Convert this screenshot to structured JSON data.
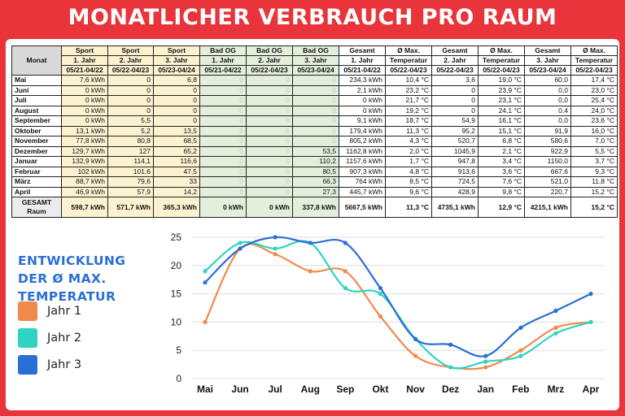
{
  "title": "MONATLICHER VERBRAUCH PRO RAUM",
  "table": {
    "header_row1": [
      "Monat",
      "Sport",
      "Sport",
      "Sport",
      "Bad OG",
      "Bad OG",
      "Bad OG",
      "Gesamt",
      "Ø Max.",
      "Gesamt",
      "Ø Max.",
      "Gesamt",
      "Ø Max."
    ],
    "header_row2": [
      "",
      "1. Jahr",
      "2. Jahr",
      "3. Jahr",
      "1. Jahr",
      "2. Jahr",
      "3. Jahr",
      "1. Jahr",
      "Temperatur",
      "2. Jahr",
      "Temperatur",
      "3. Jahr",
      "Temperatur"
    ],
    "header_row3": [
      "",
      "05/21-04/22",
      "05/22-04/23",
      "05/23-04/24",
      "05/21-04/22",
      "05/22-04/23",
      "05/23-04/24",
      "05/21-04/22",
      "05/22-04/23",
      "05/22-04/23",
      "05/22-04/23",
      "05/23-04/24",
      "05/22-04/23"
    ],
    "rows": [
      [
        "Mai",
        "7,6 kWh",
        "0",
        "6,8",
        "0",
        "0",
        "0",
        "234,3 kWh",
        "10,4 °C",
        "3,6",
        "19,0 °C",
        "60,0",
        "17,4 °C"
      ],
      [
        "Juni",
        "0 kWh",
        "0",
        "0",
        "0",
        "0",
        "0",
        "2,1 kWh",
        "23,2 °C",
        "0",
        "23,9 °C",
        "0,0",
        "23,0 °C"
      ],
      [
        "Juli",
        "0 kWh",
        "0",
        "0",
        "0",
        "0",
        "0",
        "0 kWh",
        "21,7 °C",
        "0",
        "23,1 °C",
        "0,0",
        "25,4 °C"
      ],
      [
        "August",
        "0 kWh",
        "0",
        "0",
        "0",
        "0",
        "0",
        "0 kWh",
        "19,2 °C",
        "0",
        "24,1 °C",
        "0,4",
        "24,0 °C"
      ],
      [
        "September",
        "0 kWh",
        "5,5",
        "0",
        "0",
        "0",
        "0",
        "9,1 kWh",
        "18,7 °C",
        "54,9",
        "16,1 °C",
        "0,0",
        "23,6 °C"
      ],
      [
        "Oktober",
        "13,1 kWh",
        "5,2",
        "13,5",
        "0",
        "0",
        "0",
        "179,4 kWh",
        "11,3 °C",
        "95,2",
        "15,1 °C",
        "91,9",
        "16,0 °C"
      ],
      [
        "November",
        "77,8 kWh",
        "80,8",
        "68,5",
        "0",
        "0",
        "0",
        "805,2 kWh",
        "4,3 °C",
        "520,7",
        "6,8 °C",
        "580,6",
        "7,0 °C"
      ],
      [
        "Dezember",
        "129,7 kWh",
        "127",
        "65,2",
        "0",
        "0",
        "53,5",
        "1162,8 kWh",
        "2,0 °C",
        "1045,9",
        "2,1 °C",
        "922,9",
        "5,5 °C"
      ],
      [
        "Januar",
        "132,9 kWh",
        "114,1",
        "116,6",
        "0",
        "0",
        "110,2",
        "1157,6 kWh",
        "1,7 °C",
        "947,8",
        "3,4 °C",
        "1150,0",
        "3,7 °C"
      ],
      [
        "Februar",
        "102 kWh",
        "101,6",
        "47,5",
        "0",
        "0",
        "80,5",
        "907,3 kWh",
        "4,8 °C",
        "913,6",
        "3,6 °C",
        "667,6",
        "9,3 °C"
      ],
      [
        "März",
        "88,7 kWh",
        "79,6",
        "33",
        "0",
        "0",
        "66,3",
        "764 kWh",
        "8,5 °C",
        "724,5",
        "7,6 °C",
        "521,0",
        "11,8 °C"
      ],
      [
        "April",
        "46,9 kWh",
        "57,9",
        "14,2",
        "0",
        "0",
        "27,3",
        "445,7 kWh",
        "9,6 °C",
        "428,9",
        "9,8 °C",
        "220,7",
        "15,2 °C"
      ]
    ],
    "total_label": "GESAMT Raum",
    "total": [
      "598,7 kWh",
      "571,7 kWh",
      "365,3 kWh",
      "0 kWh",
      "0 kWh",
      "337,8 kWh",
      "5667,5 kWh",
      "11,3 °C",
      "4735,1 kWh",
      "12,9 °C",
      "4215,1 kWh",
      "15,2 °C"
    ]
  },
  "legend": {
    "title": "ENTWICKLUNG DER Ø MAX. TEMPERATUR",
    "items": [
      {
        "label": "Jahr 1",
        "color": "#f08a4b"
      },
      {
        "label": "Jahr 2",
        "color": "#2ed3c4"
      },
      {
        "label": "Jahr 3",
        "color": "#2a6fd6"
      }
    ]
  },
  "chart_data": {
    "type": "line",
    "title": "Entwicklung der Ø max. Temperatur",
    "categories": [
      "Mai",
      "Jun",
      "Jul",
      "Aug",
      "Sep",
      "Okt",
      "Nov",
      "Dez",
      "Jan",
      "Feb",
      "Mrz",
      "Apr"
    ],
    "ylim": [
      0,
      25
    ],
    "yticks": [
      0,
      5,
      10,
      15,
      20,
      25
    ],
    "grid": true,
    "series": [
      {
        "name": "Jahr 1",
        "color": "#f08a4b",
        "values": [
          10,
          23,
          22,
          19,
          19,
          11,
          4,
          2,
          2,
          5,
          9,
          10
        ]
      },
      {
        "name": "Jahr 2",
        "color": "#2ed3c4",
        "values": [
          19,
          24,
          23,
          24,
          16,
          15,
          7,
          2,
          3,
          4,
          8,
          10
        ]
      },
      {
        "name": "Jahr 3",
        "color": "#2a6fd6",
        "values": [
          17,
          23,
          25,
          24,
          24,
          16,
          7,
          6,
          4,
          9,
          12,
          15
        ]
      }
    ]
  }
}
